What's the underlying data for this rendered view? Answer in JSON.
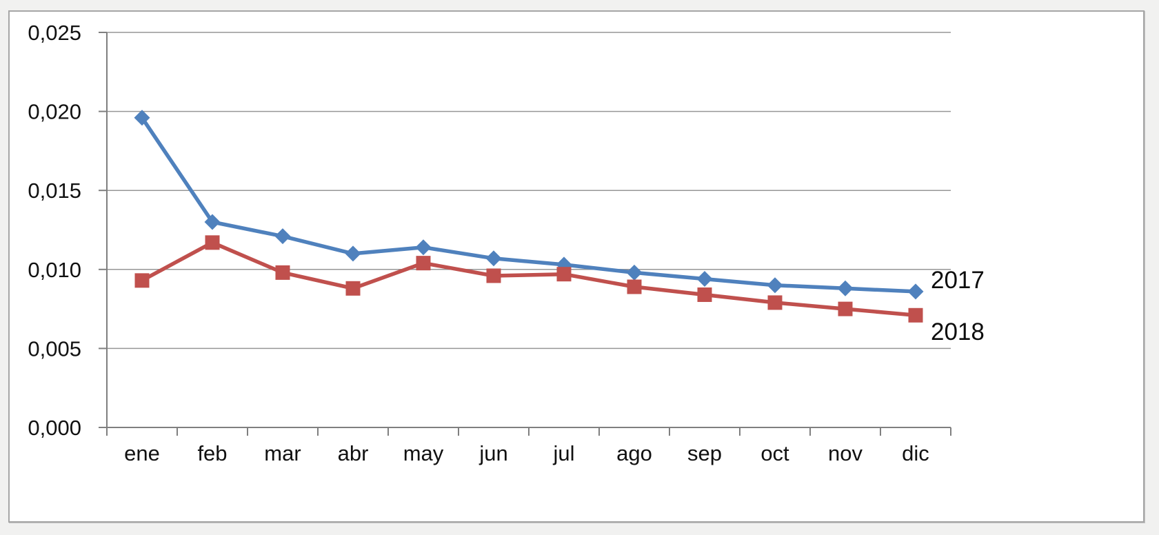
{
  "chart_data": {
    "type": "line",
    "title": "",
    "xlabel": "",
    "ylabel": "",
    "categories": [
      "ene",
      "feb",
      "mar",
      "abr",
      "may",
      "jun",
      "jul",
      "ago",
      "sep",
      "oct",
      "nov",
      "dic"
    ],
    "series": [
      {
        "name": "2017",
        "color": "#4F81BD",
        "marker": "diamond",
        "values": [
          0.0196,
          0.013,
          0.0121,
          0.011,
          0.0114,
          0.0107,
          0.0103,
          0.0098,
          0.0094,
          0.009,
          0.0088,
          0.0086
        ]
      },
      {
        "name": "2018",
        "color": "#C0504D",
        "marker": "square",
        "values": [
          0.0093,
          0.0117,
          0.0098,
          0.0088,
          0.0104,
          0.0096,
          0.0097,
          0.0089,
          0.0084,
          0.0079,
          0.0075,
          0.0071
        ]
      }
    ],
    "ylim": [
      0,
      0.025
    ],
    "ytick_values": [
      0,
      0.005,
      0.01,
      0.015,
      0.02,
      0.025
    ],
    "ytick_labels": [
      "0,000",
      "0,005",
      "0,010",
      "0,015",
      "0,020",
      "0,025"
    ],
    "grid": true,
    "legend_position": "end-of-line"
  },
  "colors": {
    "series_2017": "#4F81BD",
    "series_2018": "#C0504D"
  }
}
